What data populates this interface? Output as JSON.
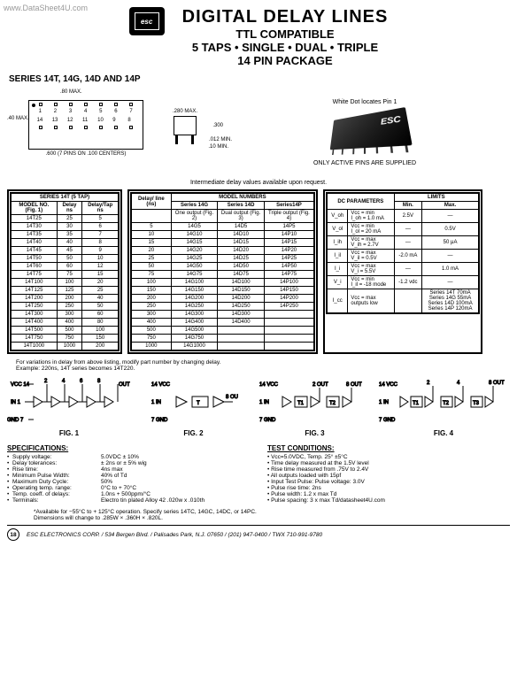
{
  "watermark": "www.DataSheet4U.com",
  "logo_text": "esc",
  "title": {
    "main": "DIGITAL DELAY LINES",
    "sub1": "TTL COMPATIBLE",
    "sub2": "5 TAPS • SINGLE • DUAL • TRIPLE",
    "sub3": "14 PIN PACKAGE"
  },
  "series_label": "SERIES 14T, 14G, 14D AND 14P",
  "pkg": {
    "top_dim": ".80 MAX.",
    "left_dim": ".40 MAX.",
    "bottom_dim": ".600 (7 PINS ON .100 CENTERS)",
    "pins_top": [
      "1",
      "2",
      "3",
      "4",
      "5",
      "6",
      "7"
    ],
    "pins_bot": [
      "14",
      "13",
      "12",
      "11",
      "10",
      "9",
      "8"
    ]
  },
  "side": {
    "width": ".280 MAX.",
    "height": ".300",
    "lead1": ".012 MIN.",
    "lead2": ".10 MIN."
  },
  "chip_text": "ESC",
  "note1": "White Dot locates Pin 1",
  "note2": "ONLY ACTIVE PINS ARE SUPPLIED",
  "intermediate": "Intermediate delay values available upon request.",
  "table1": {
    "title": "SERIES 14T (5 TAP)",
    "headers": [
      "MODEL NO. (Fig. 1)",
      "Delay ns",
      "Delay/Tap ns"
    ],
    "rows": [
      [
        "14T25",
        "25",
        "5"
      ],
      [
        "14T30",
        "30",
        "6"
      ],
      [
        "14T35",
        "35",
        "7"
      ],
      [
        "14T40",
        "40",
        "8"
      ],
      [
        "14T45",
        "45",
        "9"
      ],
      [
        "14T50",
        "50",
        "10"
      ],
      [
        "14T60",
        "60",
        "12"
      ],
      [
        "14T75",
        "75",
        "15"
      ],
      [
        "14T100",
        "100",
        "20"
      ],
      [
        "14T125",
        "125",
        "25"
      ],
      [
        "14T200",
        "200",
        "40"
      ],
      [
        "14T250",
        "250",
        "50"
      ],
      [
        "14T300",
        "300",
        "60"
      ],
      [
        "14T400",
        "400",
        "80"
      ],
      [
        "14T500",
        "500",
        "100"
      ],
      [
        "14T750",
        "750",
        "150"
      ],
      [
        "14T1000",
        "1000",
        "200"
      ]
    ]
  },
  "table2": {
    "title": "MODEL NUMBERS",
    "col_headers": [
      "Delay/ line (ns)",
      "Series 14G",
      "Series 14D",
      "Series14P"
    ],
    "sub_headers": [
      "",
      "One output (Fig. 2)",
      "Dual output (Fig. 3)",
      "Triple output (Fig. 4)"
    ],
    "rows": [
      [
        "5",
        "14G5",
        "14D5",
        "14P5"
      ],
      [
        "10",
        "14G10",
        "14D10",
        "14P10"
      ],
      [
        "15",
        "14G15",
        "14D15",
        "14P15"
      ],
      [
        "20",
        "14G20",
        "14D20",
        "14P20"
      ],
      [
        "25",
        "14G25",
        "14D25",
        "14P25"
      ],
      [
        "50",
        "14G50",
        "14D50",
        "14P50"
      ],
      [
        "75",
        "14G75",
        "14D75",
        "14P75"
      ],
      [
        "100",
        "14G100",
        "14D100",
        "14P100"
      ],
      [
        "150",
        "14G150",
        "14D150",
        "14P150"
      ],
      [
        "200",
        "14G200",
        "14D200",
        "14P200"
      ],
      [
        "250",
        "14G250",
        "14D250",
        "14P250"
      ],
      [
        "300",
        "14G300",
        "14D300",
        ""
      ],
      [
        "400",
        "14G400",
        "14D400",
        ""
      ],
      [
        "500",
        "14G500",
        "",
        ""
      ],
      [
        "750",
        "14G750",
        "",
        ""
      ],
      [
        "1000",
        "14G1000",
        "",
        ""
      ]
    ]
  },
  "table3": {
    "title": "DC PARAMETERS",
    "headers": [
      "",
      "",
      "LIMITS"
    ],
    "sub": [
      "",
      "",
      "Min.",
      "Max."
    ],
    "rows": [
      [
        "V_oh",
        "Vcc = min\nI_oh = 1.0 mA",
        "2.5V",
        "—"
      ],
      [
        "V_ol",
        "Vcc = min\nI_ol = 20 mA",
        "—",
        "0.5V"
      ],
      [
        "I_ih",
        "Vcc = max\nV_ih = 2.7V",
        "—",
        "50 μA"
      ],
      [
        "I_il",
        "Vcc = max\nV_il = 0.5V",
        "-2.0 mA",
        "—"
      ],
      [
        "I_i",
        "Vcc = max\nV_i = 5.5V",
        "—",
        "1.0 mA"
      ],
      [
        "V_i",
        "Vcc = min\nI_il = -18 mode",
        "-1.2 vdc",
        "—"
      ],
      [
        "I_cc",
        "Vcc = max\noutputs low",
        "",
        "Series 14T  70mA\nSeries 14G  55mA\nSeries 14D  100mA\nSeries 14P  120mA"
      ]
    ]
  },
  "footnote1": "For variations in delay from above listing, modify part number by changing delay.",
  "footnote2": "Example: 220ns, 14T series becomes 14T220.",
  "figs": {
    "fig1": "FIG. 1",
    "fig2": "FIG. 2",
    "fig3": "FIG. 3",
    "fig4": "FIG. 4",
    "vcc": "VCC",
    "in": "IN",
    "gnd": "GND",
    "out": "OUT",
    "t1": "T1",
    "t2": "T2",
    "t3": "T3"
  },
  "specs": {
    "title": "SPECIFICATIONS:",
    "items": [
      [
        "Supply voltage:",
        "5.0VDC ± 10%"
      ],
      [
        "Delay tolerances:",
        "± 2ns or ± 5%  wig"
      ],
      [
        "Rise time:",
        "4ns max"
      ],
      [
        "Minimum Pulse Width:",
        "40% of Td"
      ],
      [
        "Maximum Duty Cycle:",
        "50%"
      ],
      [
        "Operating temp. range:",
        "0°C to + 70°C"
      ],
      [
        "Temp. coeff. of delays:",
        "1.0ns + 500ppm/°C"
      ],
      [
        "Terminals:",
        "Electro tin plated Alloy 42  .020w x .010th"
      ]
    ]
  },
  "test": {
    "title": "TEST CONDITIONS:",
    "items": [
      "Vcc=5.0VDC, Temp. 25° ±5°C",
      "Time delay measured at the 1.5V level",
      "Rise time measured from .75V to 2.4V",
      "All outputs loaded with 15pf",
      "Input Test Pulse:  Pulse voltage:  3.0V",
      "                   Pulse rise time:  2ns",
      "                   Pulse width:  1.2 x max Td",
      "                   Pulse spacing:  3 x max Td/datasheet4U.com"
    ]
  },
  "avail_note1": "*Available for −55°C to + 125°C operation.  Specify series 14TC, 14GC, 14DC, or 14PC.",
  "avail_note2": "Dimensions will change to .285W × .360H × .820L.",
  "footer_num": "18",
  "footer_text": "ESC ELECTRONICS CORP. / 534 Bergen Blvd. / Palisades Park, N.J. 07650 / (201) 947-0400 / TWX 710-991-9780"
}
